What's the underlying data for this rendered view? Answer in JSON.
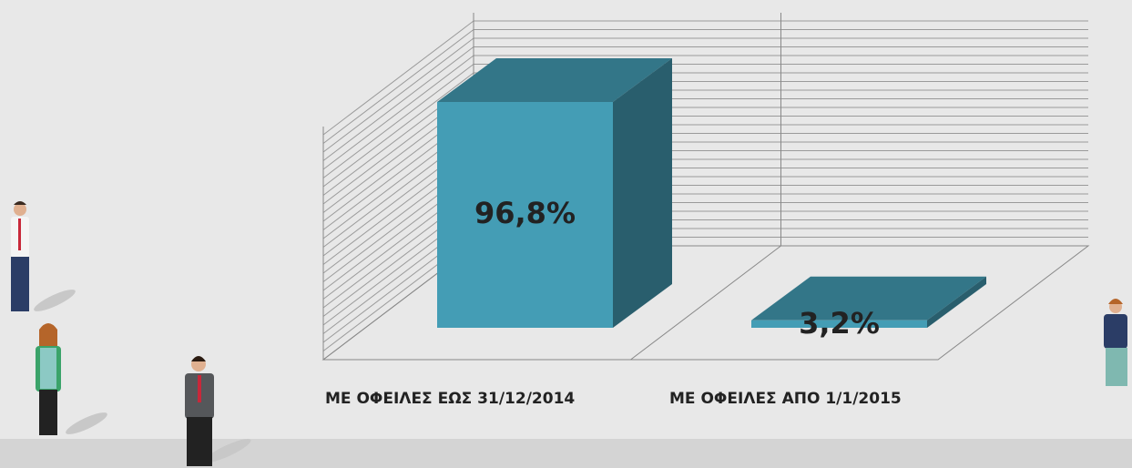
{
  "chart_data": {
    "type": "bar3d",
    "categories": [
      "ΜΕ ΟΦΕΙΛΕΣ ΕΩΣ 31/12/2014",
      "ΜΕ ΟΦΕΙΛΕΣ ΑΠΟ 1/1/2015"
    ],
    "values": [
      96.8,
      3.2
    ],
    "value_labels": [
      "96,8%",
      "3,2%"
    ],
    "color": "#449db5"
  }
}
